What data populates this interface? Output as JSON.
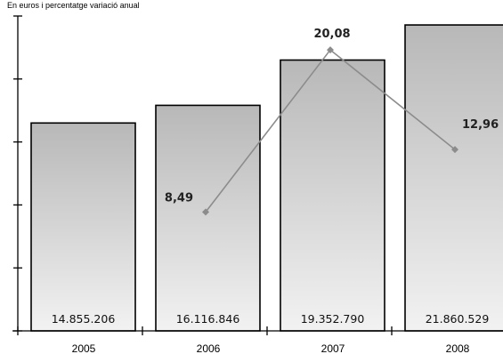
{
  "subtitle": "En euros i percentatge variació anual",
  "chart_data": {
    "type": "bar",
    "title": "",
    "subtitle": "En euros i percentatge variació anual",
    "categories": [
      "2005",
      "2006",
      "2007",
      "2008"
    ],
    "series": [
      {
        "values": [
          14855206,
          16116846,
          19352790,
          21860529
        ],
        "labels": [
          "14.855.206",
          "16.116.846",
          "19.352.790",
          "21.860.529"
        ]
      }
    ],
    "line_series": [
      {
        "type": "line",
        "x": [
          "2006",
          "2007",
          "2008"
        ],
        "values": [
          8.49,
          20.08,
          12.96
        ],
        "labels": [
          "8,49",
          "20,08",
          "12,96"
        ],
        "color": "#8c8c8c"
      }
    ],
    "ylim": [
      0,
      22500000
    ],
    "line_ylim": [
      0,
      22.5
    ],
    "grid": false,
    "legend": "none",
    "bar_fill_top": "#b8b8b8",
    "bar_fill_bottom": "#f2f2f2",
    "bar_stroke": "#000000"
  }
}
